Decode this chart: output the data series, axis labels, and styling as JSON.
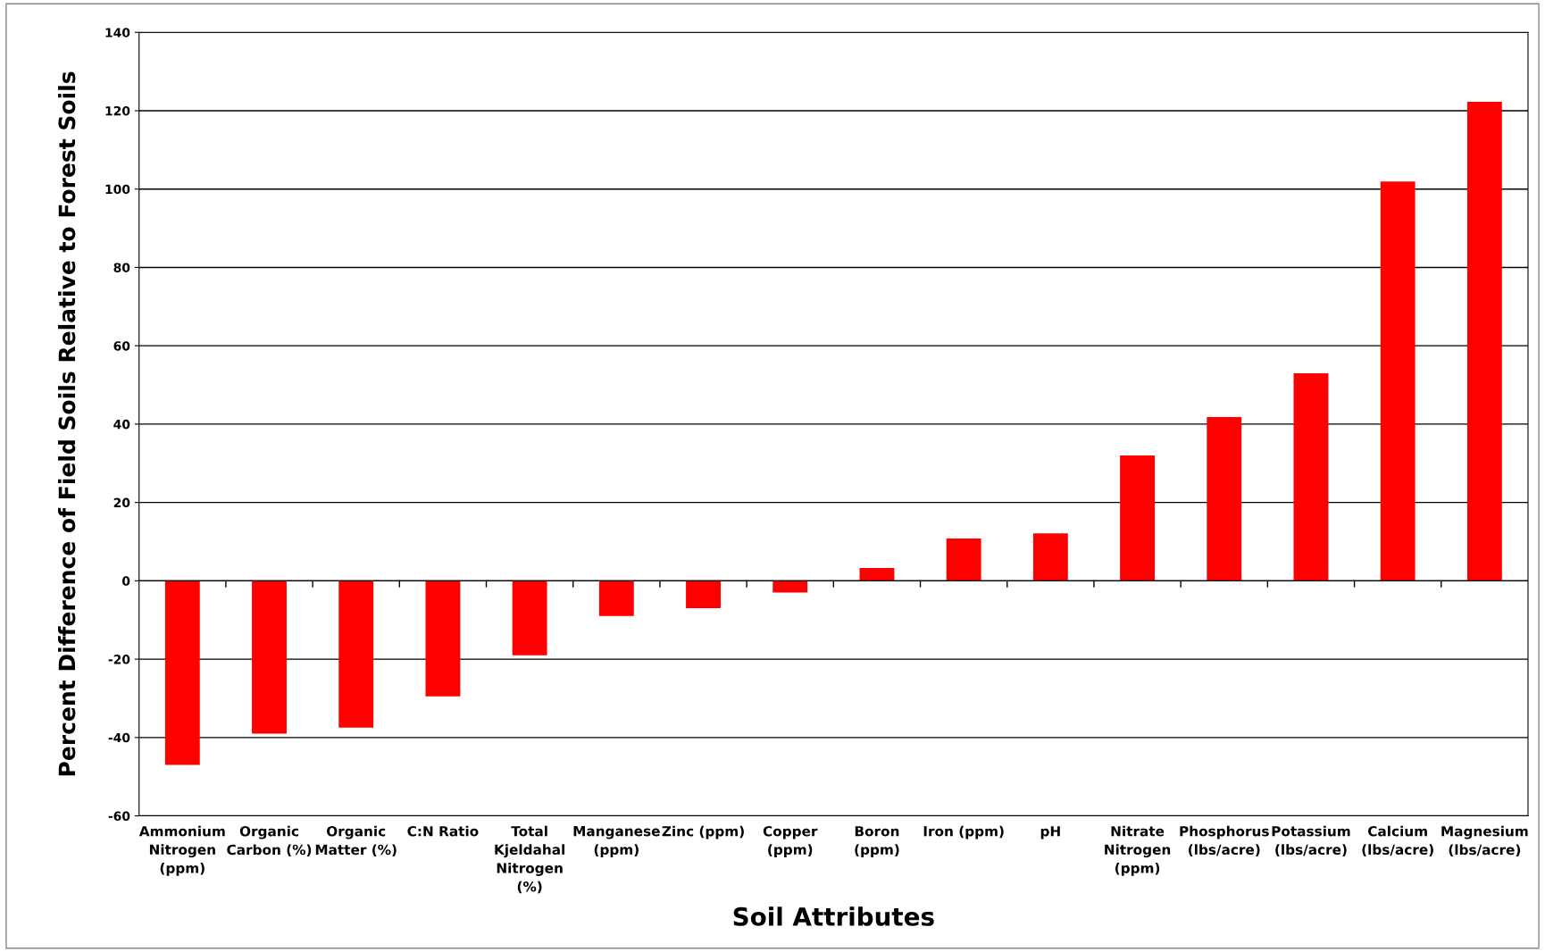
{
  "chart_data": {
    "type": "bar",
    "xlabel": "Soil Attributes",
    "ylabel": "Percent Difference of Field Soils Relative to Forest Soils",
    "categories": [
      "Ammonium\nNitrogen\n(ppm)",
      "Organic\nCarbon (%)",
      "Organic\nMatter (%)",
      "C:N Ratio",
      "Total\nKjeldahal\nNitrogen\n(%)",
      "Manganese\n(ppm)",
      "Zinc (ppm)",
      "Copper\n(ppm)",
      "Boron\n(ppm)",
      "Iron (ppm)",
      "pH",
      "Nitrate\nNitrogen\n(ppm)",
      "Phosphorus\n(lbs/acre)",
      "Potassium\n(lbs/acre)",
      "Calcium\n(lbs/acre)",
      "Magnesium\n(lbs/acre)"
    ],
    "values": [
      -47,
      -39,
      -37.5,
      -29.5,
      -19,
      -9,
      -7,
      -3,
      3.3,
      10.8,
      12.1,
      32,
      41.8,
      53,
      101.9,
      122.3
    ],
    "color": "#ff0000",
    "ylim": [
      -60,
      140
    ],
    "yticks": [
      -60,
      -40,
      -20,
      0,
      20,
      40,
      60,
      80,
      100,
      120,
      140
    ],
    "grid": "y"
  }
}
